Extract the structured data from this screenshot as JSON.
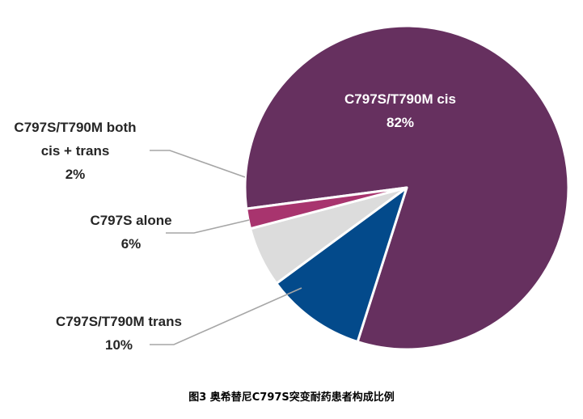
{
  "chart_data": {
    "type": "pie",
    "title": "",
    "slices": [
      {
        "label": "C797S/T790M cis",
        "value": 82,
        "value_label": "82%",
        "color": "#66305f"
      },
      {
        "label": "C797S/T790M trans",
        "value": 10,
        "value_label": "10%",
        "color": "#034a8b"
      },
      {
        "label": "C797S alone",
        "value": 6,
        "value_label": "6%",
        "color": "#dcdcdc"
      },
      {
        "label": "C797S/T790M both cis + trans",
        "value": 2,
        "value_label": "2%",
        "color": "#a8346e"
      }
    ],
    "label_lines": [
      [
        "C797S/T790M cis",
        "82%"
      ],
      [
        "C797S/T790M trans",
        "10%"
      ],
      [
        "C797S alone",
        "6%"
      ],
      [
        "C797S/T790M both",
        "cis + trans",
        "2%"
      ]
    ]
  },
  "caption": "图3 奥希替尼C797S突变耐药患者构成比例"
}
